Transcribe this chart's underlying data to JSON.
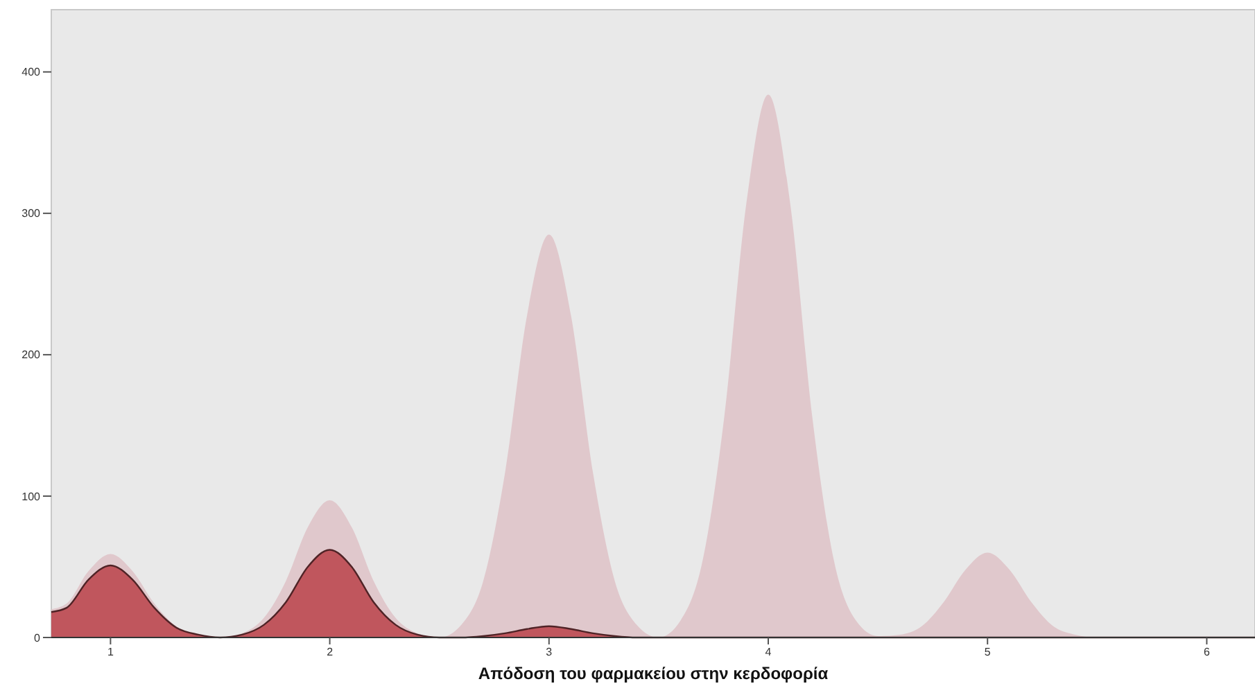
{
  "chart_data": {
    "type": "area",
    "xlabel": "Απόδοση του φαρμακείου στην κερδοφορία",
    "x": [
      0.73,
      0.8,
      0.9,
      1.0,
      1.1,
      1.2,
      1.3,
      1.4,
      1.5,
      1.6,
      1.7,
      1.8,
      1.9,
      2.0,
      2.1,
      2.2,
      2.3,
      2.4,
      2.5,
      2.6,
      2.7,
      2.8,
      2.9,
      3.0,
      3.1,
      3.2,
      3.3,
      3.4,
      3.5,
      3.6,
      3.7,
      3.8,
      3.9,
      4.0,
      4.1,
      4.2,
      4.3,
      4.4,
      4.5,
      4.6,
      4.7,
      4.8,
      4.9,
      5.0,
      5.1,
      5.2,
      5.3,
      5.4,
      5.5,
      5.6,
      5.8,
      6.0,
      6.22
    ],
    "series": [
      {
        "color": "#e0c8cc",
        "values": [
          20,
          24,
          47,
          59,
          47,
          24,
          8,
          2,
          0,
          3,
          14,
          40,
          78,
          97,
          78,
          40,
          14,
          3,
          0,
          9,
          40,
          117,
          228,
          285,
          228,
          117,
          40,
          9,
          0,
          12,
          54,
          157,
          307,
          384,
          307,
          157,
          54,
          12,
          1,
          2,
          8,
          25,
          48,
          60,
          48,
          25,
          8,
          2,
          0,
          0,
          0,
          0,
          0
        ]
      },
      {
        "color": "#c0565d",
        "values": [
          18,
          21,
          41,
          51,
          41,
          21,
          7,
          2,
          0,
          2,
          9,
          25,
          50,
          62,
          50,
          25,
          9,
          2,
          0,
          0,
          1,
          3,
          6,
          8,
          6,
          3,
          1,
          0,
          0,
          0,
          0,
          0,
          0,
          0,
          0,
          0,
          0,
          0,
          0,
          0,
          0,
          0,
          0,
          0,
          0,
          0,
          0,
          0,
          0,
          0,
          0,
          0,
          0
        ]
      }
    ],
    "xlim": [
      0.73,
      6.22
    ],
    "xticks": [
      1,
      2,
      3,
      4,
      5,
      6
    ],
    "ylim": [
      0,
      444
    ],
    "yticks": [
      0,
      100,
      200,
      300,
      400
    ],
    "grid": false
  }
}
